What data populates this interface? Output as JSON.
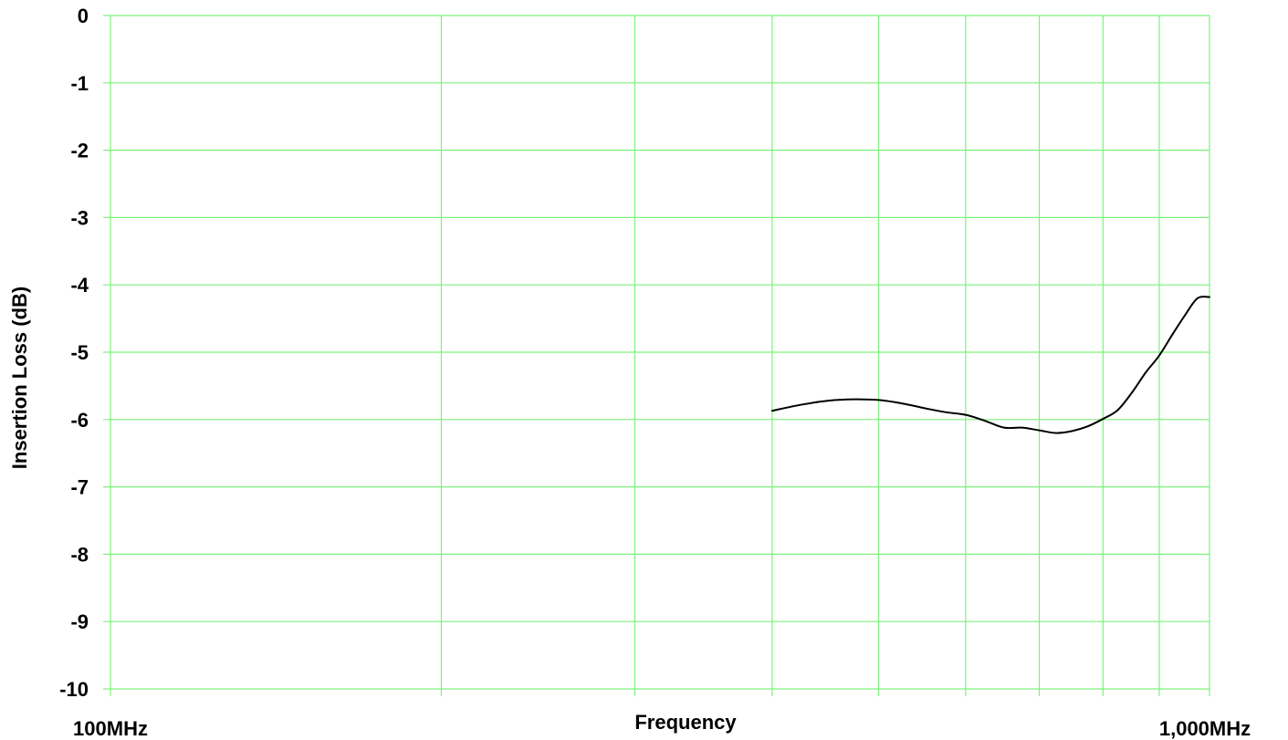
{
  "chart_data": {
    "type": "line",
    "xlabel": "Frequency",
    "ylabel": "Insertion Loss (dB)",
    "x_scale": "log",
    "xlim": [
      100,
      1000
    ],
    "ylim": [
      -10,
      0
    ],
    "x_tick_labels": [
      "100MHz",
      "1,000MHz"
    ],
    "x_gridlines": [
      100,
      200,
      300,
      400,
      500,
      600,
      700,
      800,
      900,
      1000
    ],
    "y_ticks": [
      0,
      -1,
      -2,
      -3,
      -4,
      -5,
      -6,
      -7,
      -8,
      -9,
      -10
    ],
    "y_tick_labels": [
      "0",
      "-1",
      "-2",
      "-3",
      "-4",
      "-5",
      "-6",
      "-7",
      "-8",
      "-9",
      "-10"
    ],
    "grid": true,
    "colors": {
      "grid": "#7cf27c",
      "line": "#000000",
      "text": "#000000"
    },
    "series": [
      {
        "x": [
          400,
          425,
          450,
          475,
          500,
          525,
          550,
          575,
          600,
          625,
          650,
          675,
          700,
          725,
          750,
          775,
          800,
          825,
          850,
          875,
          900,
          925,
          950,
          975,
          1000
        ],
        "y": [
          -5.87,
          -5.78,
          -5.72,
          -5.7,
          -5.71,
          -5.76,
          -5.83,
          -5.89,
          -5.93,
          -6.02,
          -6.12,
          -6.12,
          -6.16,
          -6.2,
          -6.17,
          -6.1,
          -5.99,
          -5.86,
          -5.6,
          -5.3,
          -5.05,
          -4.74,
          -4.45,
          -4.2,
          -4.18
        ]
      }
    ]
  }
}
